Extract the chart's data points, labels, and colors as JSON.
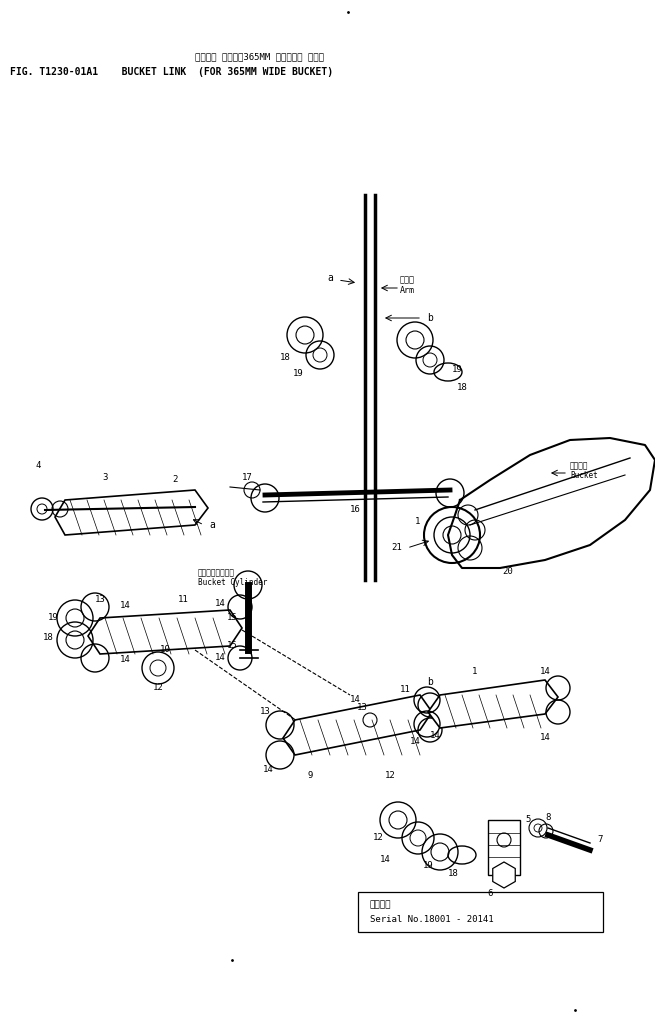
{
  "title_japanese": "バケット リンク（365MM 幅バケット ヨウ）",
  "title_english": "FIG. T1230-01A1    BUCKET LINK  (FOR 365MM WIDE BUCKET)",
  "serial_label_japanese": "適用号機",
  "serial_label_english": "Serial No.18001 - 20141",
  "background": "#ffffff",
  "line_color": "#000000",
  "figw": 6.55,
  "figh": 10.24,
  "dpi": 100
}
